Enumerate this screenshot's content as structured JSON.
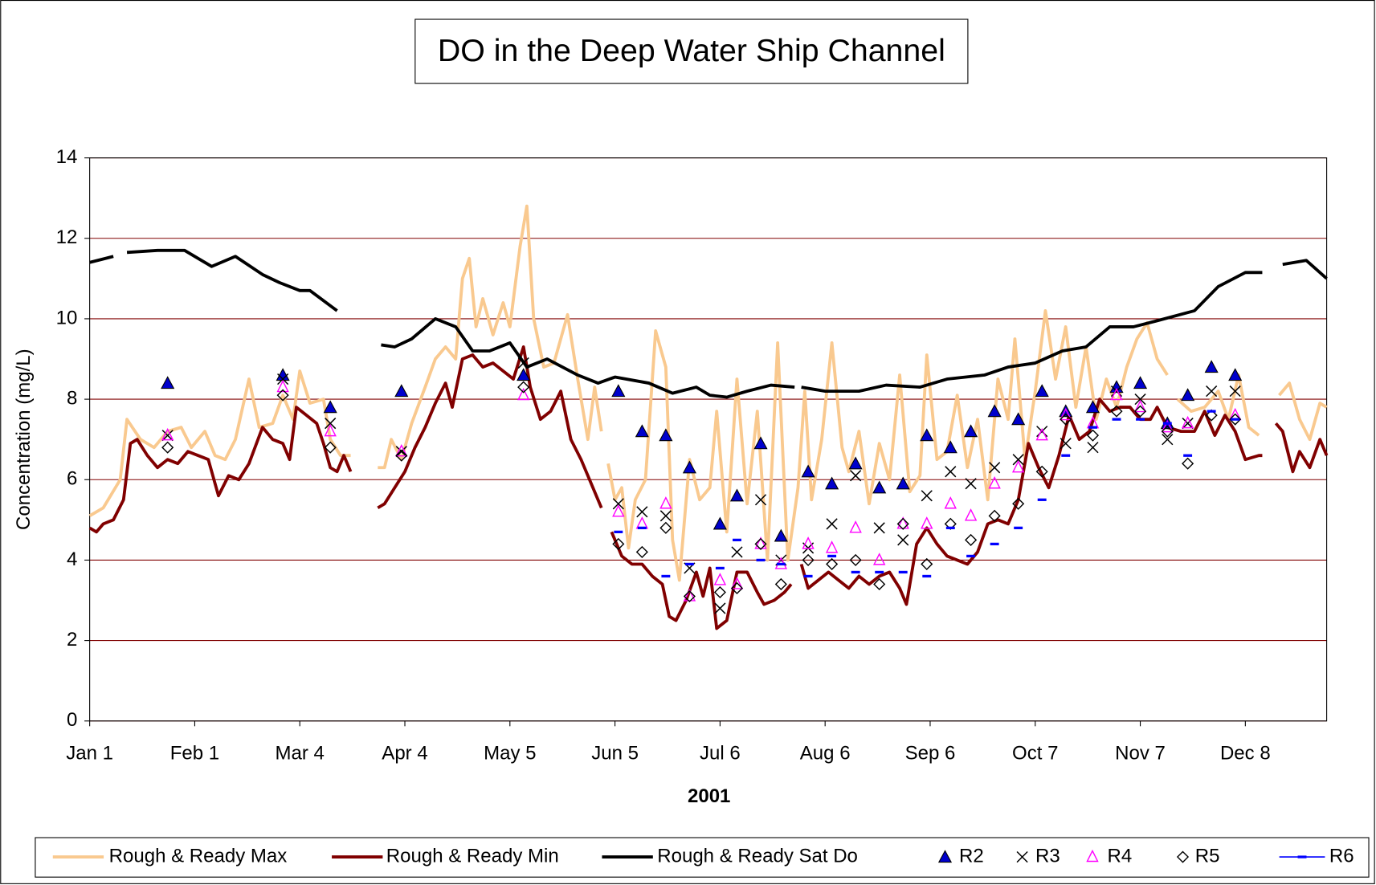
{
  "chart_data": {
    "type": "line",
    "title": "DO in the Deep Water Ship Channel",
    "x_label": "2001",
    "y_label": "Concentration (mg/L)",
    "xlim": [
      1,
      366
    ],
    "xticks": [
      {
        "value": 1,
        "label": "Jan 1"
      },
      {
        "value": 32,
        "label": "Feb 1"
      },
      {
        "value": 63,
        "label": "Mar 4"
      },
      {
        "value": 94,
        "label": "Apr 4"
      },
      {
        "value": 125,
        "label": "May 5"
      },
      {
        "value": 156,
        "label": "Jun 5"
      },
      {
        "value": 187,
        "label": "Jul 6"
      },
      {
        "value": 218,
        "label": "Aug 6"
      },
      {
        "value": 249,
        "label": "Sep 6"
      },
      {
        "value": 280,
        "label": "Oct 7"
      },
      {
        "value": 311,
        "label": "Nov 7"
      },
      {
        "value": 342,
        "label": "Dec 8"
      }
    ],
    "ylim": [
      0,
      14
    ],
    "yticks": [
      0,
      2,
      4,
      6,
      8,
      10,
      12,
      14
    ],
    "grid": true,
    "grid_color": "#800000",
    "legend": "bottom",
    "series": [
      {
        "name": "Rough & Ready Max",
        "kind": "line",
        "color": "#f9c98f",
        "x": [
          1,
          5,
          10,
          12,
          16,
          20,
          24,
          28,
          31,
          35,
          38,
          41,
          44,
          48,
          51,
          55,
          58,
          61,
          63,
          66,
          70,
          72,
          75,
          78,
          82,
          86,
          88,
          90,
          93,
          96,
          100,
          103,
          106,
          109,
          111,
          113,
          115,
          117,
          120,
          123,
          125,
          128,
          130,
          132,
          135,
          138,
          142,
          145,
          148,
          150,
          152,
          153,
          154,
          156,
          158,
          160,
          162,
          165,
          168,
          171,
          173,
          175,
          178,
          181,
          184,
          186,
          189,
          192,
          195,
          198,
          201,
          204,
          207,
          210,
          212,
          214,
          217,
          220,
          223,
          225,
          228,
          231,
          234,
          237,
          240,
          243,
          246,
          248,
          251,
          254,
          257,
          260,
          263,
          266,
          269,
          272,
          274,
          277,
          280,
          283,
          286,
          289,
          292,
          295,
          298,
          301,
          304,
          307,
          310,
          313,
          316,
          319,
          320,
          322,
          326,
          330,
          334,
          337,
          340,
          343,
          346,
          349,
          352,
          355,
          358,
          361,
          364,
          366
        ],
        "values": [
          5.1,
          5.3,
          6.0,
          7.5,
          7.0,
          6.8,
          7.2,
          7.3,
          6.8,
          7.2,
          6.6,
          6.5,
          7.0,
          8.5,
          7.3,
          7.4,
          8.1,
          7.5,
          8.7,
          7.9,
          8.0,
          7.0,
          6.6,
          6.6,
          null,
          6.3,
          6.3,
          7.0,
          6.5,
          7.4,
          8.3,
          9.0,
          9.3,
          9.0,
          11.0,
          11.5,
          9.8,
          10.5,
          9.6,
          10.4,
          9.8,
          11.8,
          12.8,
          10.0,
          8.8,
          8.9,
          10.1,
          8.5,
          7.0,
          8.3,
          7.2,
          null,
          6.4,
          5.5,
          5.8,
          4.3,
          5.5,
          6.0,
          9.7,
          8.8,
          4.5,
          3.5,
          6.5,
          5.5,
          5.8,
          7.7,
          4.7,
          8.5,
          5.4,
          7.7,
          4.0,
          9.4,
          4.0,
          5.8,
          8.2,
          5.5,
          7.0,
          9.4,
          6.8,
          6.2,
          7.2,
          5.4,
          6.9,
          6.0,
          8.6,
          5.7,
          6.1,
          9.1,
          6.5,
          6.7,
          8.1,
          6.3,
          7.5,
          5.5,
          8.5,
          7.5,
          9.5,
          6.5,
          8.2,
          10.2,
          8.5,
          9.8,
          7.8,
          9.3,
          7.5,
          8.5,
          7.8,
          8.8,
          9.5,
          9.9,
          9.0,
          8.6,
          null,
          8.0,
          7.7,
          7.8,
          8.2,
          7.5,
          8.6,
          7.3,
          7.1,
          null,
          8.1,
          8.4,
          7.5,
          7.0,
          7.9,
          7.8
        ]
      },
      {
        "name": "Rough & Ready Min",
        "kind": "line",
        "color": "#800000",
        "x": [
          1,
          3,
          5,
          8,
          11,
          13,
          15,
          18,
          21,
          24,
          27,
          30,
          33,
          36,
          39,
          42,
          45,
          48,
          52,
          55,
          58,
          60,
          62,
          65,
          68,
          70,
          72,
          74,
          76,
          78,
          82,
          86,
          88,
          91,
          94,
          97,
          100,
          103,
          106,
          108,
          111,
          114,
          117,
          120,
          123,
          126,
          129,
          131,
          134,
          137,
          140,
          143,
          146,
          149,
          152,
          153,
          155,
          158,
          161,
          164,
          167,
          170,
          172,
          174,
          177,
          180,
          182,
          184,
          186,
          189,
          192,
          195,
          198,
          200,
          203,
          206,
          208,
          209,
          211,
          213,
          216,
          219,
          222,
          225,
          228,
          231,
          234,
          237,
          240,
          242,
          245,
          248,
          251,
          254,
          257,
          260,
          263,
          266,
          269,
          272,
          275,
          278,
          281,
          284,
          287,
          290,
          293,
          296,
          299,
          302,
          305,
          308,
          311,
          314,
          316,
          319,
          323,
          327,
          330,
          333,
          336,
          339,
          342,
          346,
          347,
          349,
          351,
          353,
          356,
          358,
          361,
          364,
          366
        ],
        "values": [
          4.8,
          4.7,
          4.9,
          5.0,
          5.5,
          6.9,
          7.0,
          6.6,
          6.3,
          6.5,
          6.4,
          6.7,
          6.6,
          6.5,
          5.6,
          6.1,
          6.0,
          6.4,
          7.3,
          7.0,
          6.9,
          6.5,
          7.8,
          7.6,
          7.4,
          6.9,
          6.3,
          6.2,
          6.6,
          6.2,
          null,
          5.3,
          5.4,
          5.8,
          6.2,
          6.8,
          7.3,
          7.9,
          8.4,
          7.8,
          9.0,
          9.1,
          8.8,
          8.9,
          8.7,
          8.5,
          9.3,
          8.3,
          7.5,
          7.7,
          8.2,
          7.0,
          6.5,
          5.9,
          5.3,
          null,
          4.7,
          4.1,
          3.9,
          3.9,
          3.6,
          3.4,
          2.6,
          2.5,
          3.0,
          3.7,
          3.1,
          3.8,
          2.3,
          2.5,
          3.7,
          3.7,
          3.2,
          2.9,
          3.0,
          3.2,
          3.4,
          null,
          3.9,
          3.3,
          3.5,
          3.7,
          3.5,
          3.3,
          3.6,
          3.4,
          3.6,
          3.7,
          3.3,
          2.9,
          4.4,
          4.8,
          4.4,
          4.1,
          4.0,
          3.9,
          4.2,
          4.9,
          5.0,
          4.9,
          5.5,
          6.9,
          6.3,
          5.8,
          6.6,
          7.6,
          7.0,
          7.2,
          8.0,
          7.7,
          7.8,
          7.8,
          7.5,
          7.5,
          7.8,
          7.3,
          7.2,
          7.2,
          7.7,
          7.1,
          7.6,
          7.2,
          6.5,
          6.6,
          6.6,
          null,
          7.4,
          7.2,
          6.2,
          6.7,
          6.3,
          7.0,
          6.6
        ]
      },
      {
        "name": "Rough & Ready Sat Do",
        "kind": "line",
        "color": "#000000",
        "x": [
          1,
          8,
          10,
          12,
          21,
          29,
          37,
          44,
          52,
          57,
          63,
          66,
          74,
          80,
          87,
          91,
          96,
          103,
          109,
          114,
          119,
          125,
          130,
          136,
          145,
          151,
          156,
          166,
          173,
          180,
          184,
          189,
          195,
          202,
          209,
          210,
          211,
          218,
          228,
          236,
          246,
          254,
          265,
          272,
          280,
          288,
          295,
          302,
          309,
          316,
          327,
          334,
          342,
          347,
          350,
          353,
          360,
          366
        ],
        "values": [
          11.4,
          11.55,
          null,
          11.65,
          11.7,
          11.7,
          11.3,
          11.55,
          11.1,
          10.9,
          10.7,
          10.7,
          10.2,
          null,
          9.35,
          9.3,
          9.5,
          10.0,
          9.8,
          9.2,
          9.2,
          9.4,
          8.8,
          9.0,
          8.6,
          8.4,
          8.55,
          8.4,
          8.15,
          8.3,
          8.1,
          8.05,
          8.2,
          8.35,
          8.3,
          null,
          8.3,
          8.2,
          8.2,
          8.35,
          8.3,
          8.5,
          8.6,
          8.8,
          8.9,
          9.2,
          9.3,
          9.8,
          9.8,
          9.95,
          10.2,
          10.8,
          11.15,
          11.15,
          null,
          11.35,
          11.45,
          11.0
        ]
      },
      {
        "name": "R2",
        "kind": "scatter",
        "marker": "filled-triangle",
        "color": "#0000cc",
        "x": [
          24,
          58,
          72,
          93,
          129,
          157,
          164,
          171,
          178,
          187,
          192,
          199,
          205,
          213,
          220,
          227,
          234,
          241,
          248,
          255,
          261,
          268,
          275,
          282,
          289,
          297,
          304,
          311,
          319,
          325,
          332,
          339
        ],
        "values": [
          8.4,
          8.6,
          7.8,
          8.2,
          8.6,
          8.2,
          7.2,
          7.1,
          6.3,
          4.9,
          5.6,
          6.9,
          4.6,
          6.2,
          5.9,
          6.4,
          5.8,
          5.9,
          7.1,
          6.8,
          7.2,
          7.7,
          7.5,
          8.2,
          7.7,
          7.8,
          8.3,
          8.4,
          7.4,
          8.1,
          8.8,
          8.6
        ]
      },
      {
        "name": "R3",
        "kind": "scatter",
        "marker": "cross",
        "color": "#000000",
        "x": [
          24,
          58,
          72,
          93,
          129,
          157,
          164,
          171,
          178,
          187,
          192,
          199,
          205,
          213,
          220,
          227,
          234,
          241,
          248,
          255,
          261,
          268,
          275,
          282,
          289,
          297,
          304,
          311,
          319,
          325,
          332,
          339
        ],
        "values": [
          7.1,
          8.5,
          7.4,
          6.7,
          8.9,
          5.4,
          5.2,
          5.1,
          3.8,
          2.8,
          4.2,
          5.5,
          4.0,
          4.3,
          4.9,
          6.1,
          4.8,
          4.5,
          5.6,
          6.2,
          5.9,
          6.3,
          6.5,
          7.2,
          6.9,
          6.8,
          8.2,
          8.0,
          7.0,
          7.4,
          8.2,
          8.2
        ]
      },
      {
        "name": "R4",
        "kind": "scatter",
        "marker": "open-triangle",
        "color": "#ff00ff",
        "x": [
          24,
          58,
          72,
          93,
          129,
          157,
          164,
          171,
          178,
          187,
          192,
          199,
          205,
          213,
          220,
          227,
          234,
          241,
          248,
          255,
          261,
          268,
          275,
          282,
          289,
          297,
          304,
          311,
          319,
          325,
          339
        ],
        "values": [
          7.1,
          8.3,
          7.2,
          6.7,
          8.1,
          5.2,
          4.9,
          5.4,
          3.1,
          3.5,
          3.4,
          4.4,
          3.9,
          4.4,
          4.3,
          4.8,
          4.0,
          4.9,
          4.9,
          5.4,
          5.1,
          5.9,
          6.3,
          7.1,
          7.6,
          7.4,
          8.1,
          7.8,
          7.3,
          7.4,
          7.6
        ]
      },
      {
        "name": "R5",
        "kind": "scatter",
        "marker": "diamond",
        "color": "#000000",
        "x": [
          24,
          58,
          72,
          93,
          129,
          157,
          164,
          171,
          178,
          187,
          192,
          199,
          205,
          213,
          220,
          227,
          234,
          241,
          248,
          255,
          261,
          268,
          275,
          282,
          289,
          297,
          304,
          311,
          319,
          325,
          332,
          339
        ],
        "values": [
          6.8,
          8.1,
          6.8,
          6.6,
          8.3,
          4.4,
          4.2,
          4.8,
          3.1,
          3.2,
          3.3,
          4.4,
          3.4,
          4.0,
          3.9,
          4.0,
          3.4,
          4.9,
          3.9,
          4.9,
          4.5,
          5.1,
          5.4,
          6.2,
          7.5,
          7.1,
          7.7,
          7.7,
          7.2,
          6.4,
          7.6,
          7.5
        ]
      },
      {
        "name": "R6",
        "kind": "scatter",
        "marker": "dash",
        "color": "#0000ff",
        "x": [
          157,
          164,
          171,
          178,
          187,
          192,
          199,
          205,
          213,
          220,
          227,
          234,
          241,
          248,
          255,
          261,
          268,
          275,
          282,
          289,
          297,
          304,
          311,
          319,
          325,
          332,
          339
        ],
        "values": [
          4.7,
          4.8,
          3.6,
          3.9,
          3.8,
          4.5,
          4.0,
          3.9,
          3.6,
          4.1,
          3.7,
          3.7,
          3.7,
          3.6,
          4.8,
          4.1,
          4.4,
          4.8,
          5.5,
          6.6,
          7.3,
          7.5,
          7.5,
          7.4,
          6.6,
          7.7,
          7.5
        ]
      }
    ]
  }
}
